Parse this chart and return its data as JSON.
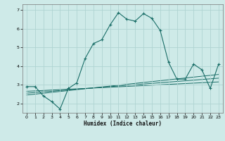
{
  "title": "",
  "xlabel": "Humidex (Indice chaleur)",
  "ylabel": "",
  "bg_color": "#ceeae8",
  "grid_color": "#afd4d2",
  "line_color": "#1a6e68",
  "xlim": [
    -0.5,
    23.5
  ],
  "ylim": [
    1.5,
    7.3
  ],
  "yticks": [
    2,
    3,
    4,
    5,
    6,
    7
  ],
  "xticks": [
    0,
    1,
    2,
    3,
    4,
    5,
    6,
    7,
    8,
    9,
    10,
    11,
    12,
    13,
    14,
    15,
    16,
    17,
    18,
    19,
    20,
    21,
    22,
    23
  ],
  "series": [
    [
      0,
      2.9
    ],
    [
      1,
      2.9
    ],
    [
      2,
      2.4
    ],
    [
      3,
      2.1
    ],
    [
      4,
      1.7
    ],
    [
      5,
      2.8
    ],
    [
      6,
      3.1
    ],
    [
      7,
      4.4
    ],
    [
      8,
      5.2
    ],
    [
      9,
      5.4
    ],
    [
      10,
      6.2
    ],
    [
      11,
      6.85
    ],
    [
      12,
      6.5
    ],
    [
      13,
      6.4
    ],
    [
      14,
      6.8
    ],
    [
      15,
      6.55
    ],
    [
      16,
      5.9
    ],
    [
      17,
      4.2
    ],
    [
      18,
      3.3
    ],
    [
      19,
      3.3
    ],
    [
      20,
      4.1
    ],
    [
      21,
      3.8
    ],
    [
      22,
      2.8
    ],
    [
      23,
      4.1
    ]
  ],
  "trend_lines": [
    {
      "x": [
        0,
        23
      ],
      "y": [
        2.45,
        3.55
      ]
    },
    {
      "x": [
        0,
        23
      ],
      "y": [
        2.55,
        3.35
      ]
    },
    {
      "x": [
        0,
        23
      ],
      "y": [
        2.65,
        3.15
      ]
    }
  ]
}
